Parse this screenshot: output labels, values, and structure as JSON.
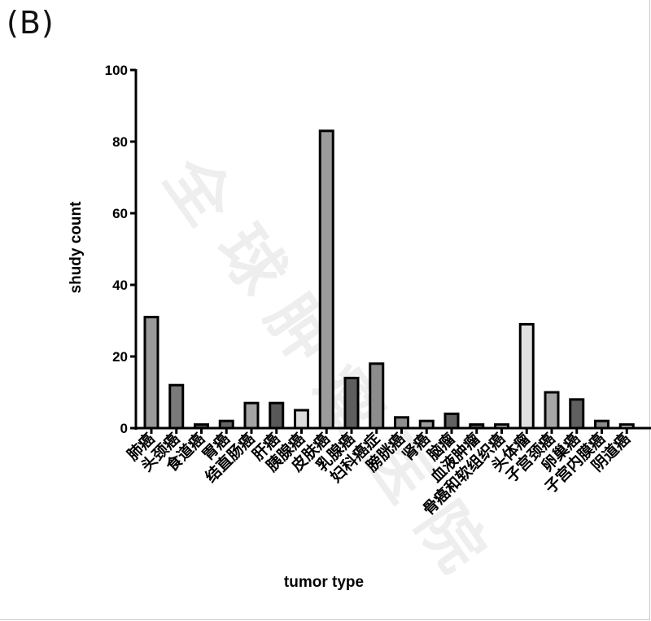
{
  "panel_label": "(B)",
  "watermark": [
    "全",
    "球",
    "肿",
    "瘤",
    "医",
    "院"
  ],
  "chart_data": {
    "type": "bar",
    "title": "",
    "xlabel": "tumor type",
    "ylabel": "shudy count",
    "ylim": [
      0,
      100
    ],
    "yticks": [
      0,
      20,
      40,
      60,
      80,
      100
    ],
    "grid": false,
    "legend": "none",
    "categories": [
      "肺癌",
      "头颈癌",
      "食道癌",
      "胃癌",
      "结直肠癌",
      "肝癌",
      "胰腺癌",
      "皮肤癌",
      "乳腺癌",
      "妇科癌症",
      "膀胱癌",
      "肾癌",
      "脑瘤",
      "血液肿瘤",
      "骨癌和软组织癌",
      "头体瘤",
      "子宫颈癌",
      "卵巢癌",
      "子宫内膜癌",
      "阴道癌"
    ],
    "values": [
      31,
      12,
      1,
      2,
      7,
      7,
      5,
      83,
      14,
      18,
      3,
      2,
      4,
      1,
      1,
      29,
      10,
      8,
      2,
      1
    ],
    "colors": [
      "#999999",
      "#7a7a7a",
      "#555555",
      "#666666",
      "#a3a3a3",
      "#585858",
      "#dcdcdc",
      "#9b9b9b",
      "#5e5e5e",
      "#8c8c8c",
      "#8e8e8e",
      "#9d9d9d",
      "#626262",
      "#5a5a5a",
      "#bdbdbd",
      "#e0e0e0",
      "#a6a6a6",
      "#606060",
      "#8a8a8a",
      "#cfcfcf"
    ]
  }
}
